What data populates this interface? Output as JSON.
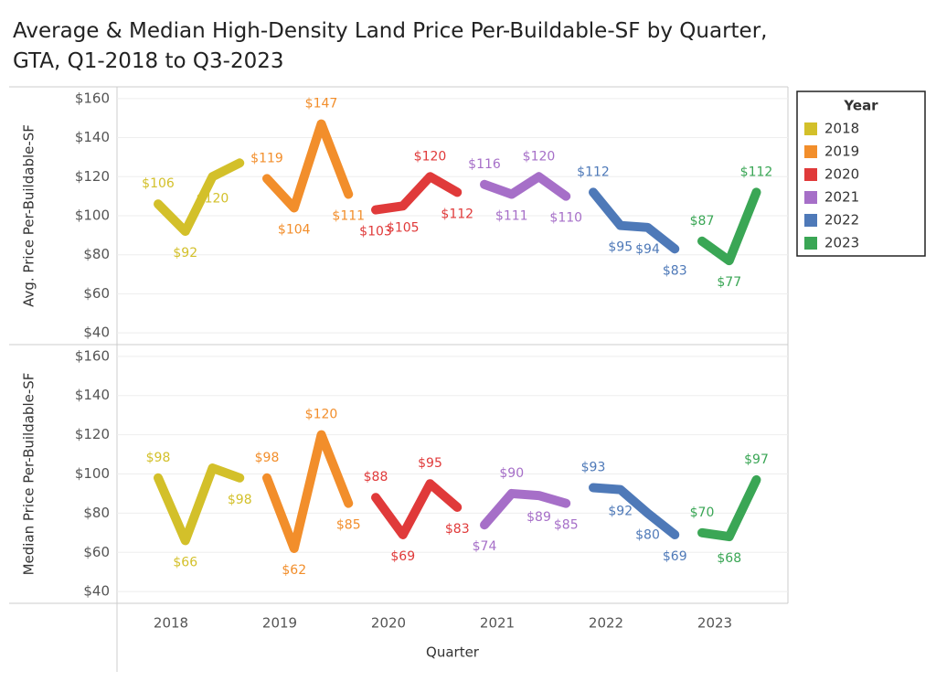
{
  "title": "Average & Median High-Density Land Price Per-Buildable-SF by Quarter, GTA, Q1-2018 to Q3-2023",
  "x_axis": {
    "label": "Quarter",
    "categories": [
      "2018",
      "2019",
      "2020",
      "2021",
      "2022",
      "2023"
    ]
  },
  "legend": {
    "title": "Year",
    "position": "right"
  },
  "chart_data": [
    {
      "type": "line",
      "ylabel": "Avg. Price Per-Buildable-SF",
      "ylim": [
        34,
        166
      ],
      "yticks": [
        {
          "value": 40,
          "label": "$40"
        },
        {
          "value": 60,
          "label": "$60"
        },
        {
          "value": 80,
          "label": "$80"
        },
        {
          "value": 100,
          "label": "$100"
        },
        {
          "value": 120,
          "label": "$120"
        },
        {
          "value": 140,
          "label": "$140"
        },
        {
          "value": 160,
          "label": "$160"
        }
      ],
      "grid": true,
      "series": [
        {
          "name": "2018",
          "color": "#d3c02a",
          "values": [
            106,
            92,
            120,
            127
          ],
          "value_labels": [
            "$106",
            "$92",
            "$120",
            null
          ]
        },
        {
          "name": "2019",
          "color": "#f28e2b",
          "values": [
            119,
            104,
            147,
            111
          ],
          "value_labels": [
            "$119",
            "$104",
            "$147",
            "$111"
          ]
        },
        {
          "name": "2020",
          "color": "#e03a3a",
          "values": [
            103,
            105,
            120,
            112
          ],
          "value_labels": [
            "$103",
            "$105",
            "$120",
            "$112"
          ]
        },
        {
          "name": "2021",
          "color": "#a66fc8",
          "values": [
            116,
            111,
            120,
            110
          ],
          "value_labels": [
            "$116",
            "$111",
            "$120",
            "$110"
          ]
        },
        {
          "name": "2022",
          "color": "#4e79b8",
          "values": [
            112,
            95,
            94,
            83
          ],
          "value_labels": [
            "$112",
            "$95",
            "$94",
            "$83"
          ]
        },
        {
          "name": "2023",
          "color": "#3aa655",
          "values": [
            87,
            77,
            112
          ],
          "value_labels": [
            "$87",
            "$77",
            "$112"
          ]
        }
      ]
    },
    {
      "type": "line",
      "ylabel": "Median Price Per-Buildable-SF",
      "ylim": [
        34,
        166
      ],
      "yticks": [
        {
          "value": 40,
          "label": "$40"
        },
        {
          "value": 60,
          "label": "$60"
        },
        {
          "value": 80,
          "label": "$80"
        },
        {
          "value": 100,
          "label": "$100"
        },
        {
          "value": 120,
          "label": "$120"
        },
        {
          "value": 140,
          "label": "$140"
        },
        {
          "value": 160,
          "label": "$160"
        }
      ],
      "grid": true,
      "series": [
        {
          "name": "2018",
          "color": "#d3c02a",
          "values": [
            98,
            66,
            103,
            98
          ],
          "value_labels": [
            "$98",
            "$66",
            null,
            "$98"
          ]
        },
        {
          "name": "2019",
          "color": "#f28e2b",
          "values": [
            98,
            62,
            120,
            85
          ],
          "value_labels": [
            "$98",
            "$62",
            "$120",
            "$85"
          ]
        },
        {
          "name": "2020",
          "color": "#e03a3a",
          "values": [
            88,
            69,
            95,
            83
          ],
          "value_labels": [
            "$88",
            "$69",
            "$95",
            "$83"
          ]
        },
        {
          "name": "2021",
          "color": "#a66fc8",
          "values": [
            74,
            90,
            89,
            85
          ],
          "value_labels": [
            "$74",
            "$90",
            "$89",
            "$85"
          ]
        },
        {
          "name": "2022",
          "color": "#4e79b8",
          "values": [
            93,
            92,
            80,
            69
          ],
          "value_labels": [
            "$93",
            "$92",
            "$80",
            "$69"
          ]
        },
        {
          "name": "2023",
          "color": "#3aa655",
          "values": [
            70,
            68,
            97
          ],
          "value_labels": [
            "$70",
            "$68",
            "$97"
          ]
        }
      ]
    }
  ]
}
